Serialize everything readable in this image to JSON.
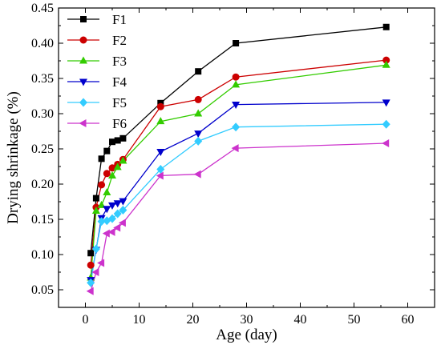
{
  "chart_data": {
    "type": "line",
    "xlabel": "Age (day)",
    "ylabel": "Drying shrinkage (%)",
    "xlim": [
      -5,
      65
    ],
    "ylim": [
      0.025,
      0.45
    ],
    "xticks": [
      0,
      10,
      20,
      30,
      40,
      50,
      60
    ],
    "yticks": [
      0.05,
      0.1,
      0.15,
      0.2,
      0.25,
      0.3,
      0.35,
      0.4,
      0.45
    ],
    "ytick_labels": [
      "0.05",
      "0.10",
      "0.15",
      "0.20",
      "0.25",
      "0.30",
      "0.35",
      "0.40",
      "0.45"
    ],
    "grid": false,
    "legend_position": "top-left",
    "x": [
      1,
      2,
      3,
      4,
      5,
      6,
      7,
      14,
      21,
      28,
      56
    ],
    "series": [
      {
        "name": "F1",
        "color": "#000000",
        "marker": "square",
        "values": [
          0.102,
          0.18,
          0.236,
          0.247,
          0.26,
          0.262,
          0.265,
          0.315,
          0.36,
          0.4,
          0.423
        ]
      },
      {
        "name": "F2",
        "color": "#cc0000",
        "marker": "circle",
        "values": [
          0.085,
          0.167,
          0.199,
          0.215,
          0.223,
          0.228,
          0.235,
          0.31,
          0.32,
          0.352,
          0.376
        ]
      },
      {
        "name": "F3",
        "color": "#33cc00",
        "marker": "triangle-up",
        "values": [
          0.067,
          0.162,
          0.17,
          0.188,
          0.212,
          0.224,
          0.233,
          0.289,
          0.3,
          0.341,
          0.369
        ]
      },
      {
        "name": "F4",
        "color": "#0000cc",
        "marker": "triangle-down",
        "values": [
          0.064,
          0.107,
          0.152,
          0.165,
          0.17,
          0.173,
          0.176,
          0.246,
          0.272,
          0.313,
          0.316
        ]
      },
      {
        "name": "F5",
        "color": "#33ccff",
        "marker": "diamond",
        "values": [
          0.06,
          0.108,
          0.147,
          0.148,
          0.151,
          0.158,
          0.163,
          0.221,
          0.261,
          0.281,
          0.285
        ]
      },
      {
        "name": "F6",
        "color": "#cc33cc",
        "marker": "triangle-left",
        "values": [
          0.048,
          0.075,
          0.088,
          0.13,
          0.132,
          0.138,
          0.145,
          0.212,
          0.214,
          0.251,
          0.258
        ]
      }
    ]
  }
}
